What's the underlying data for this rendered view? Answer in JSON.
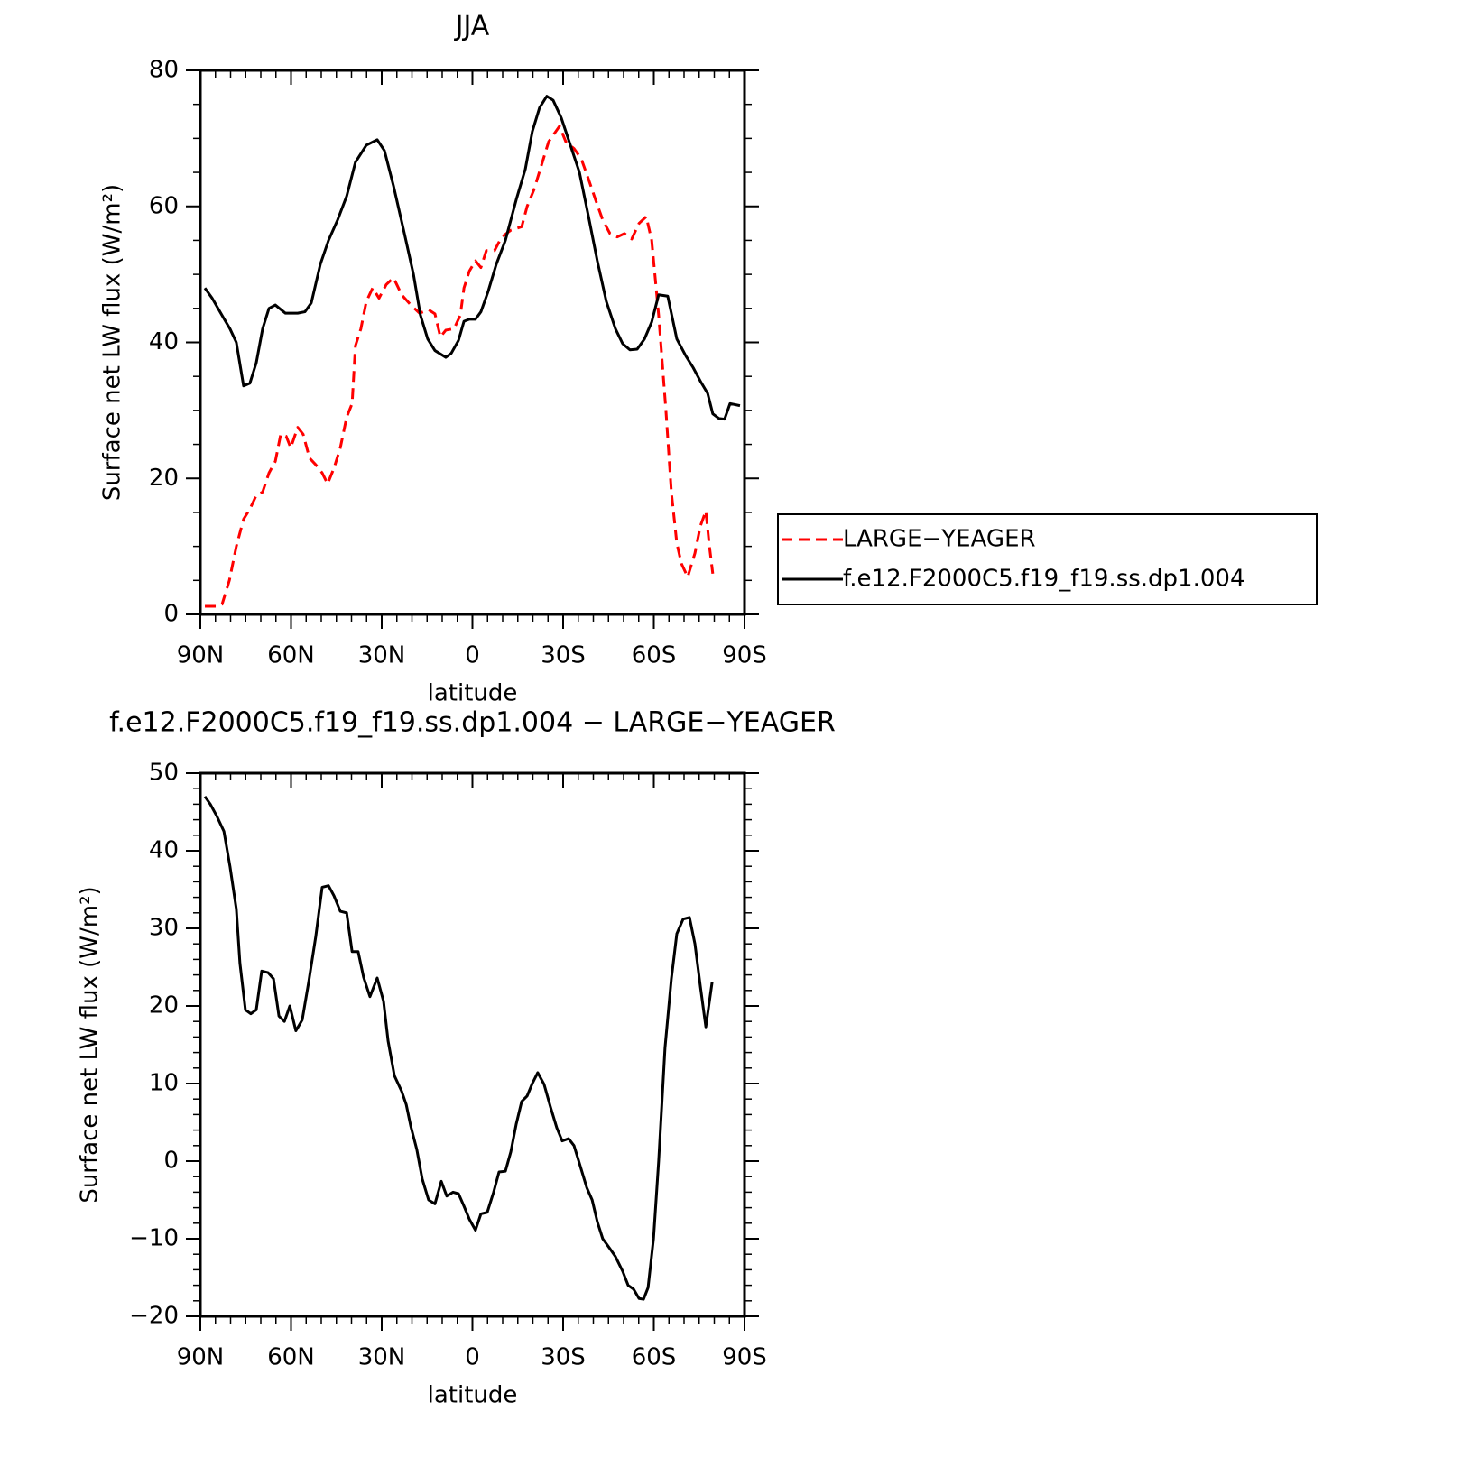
{
  "chart_data": [
    {
      "type": "line",
      "title": "JJA",
      "xlabel": "latitude",
      "ylabel": "Surface net LW flux (W/m²)",
      "xlim": [
        90,
        -90
      ],
      "xticks": [
        {
          "value": 90,
          "label": "90N"
        },
        {
          "value": 60,
          "label": "60N"
        },
        {
          "value": 30,
          "label": "30N"
        },
        0,
        {
          "value": -30,
          "label": "30S"
        },
        {
          "value": -60,
          "label": "60S"
        },
        {
          "value": -90,
          "label": "90S"
        }
      ],
      "ylim": [
        0,
        80
      ],
      "yticks": [
        0,
        20,
        40,
        60,
        80
      ],
      "legend": "right",
      "series": [
        {
          "name": "LARGE−YEAGER",
          "color": "#ff0000",
          "dash": "dashed",
          "x": [
            88.5,
            84.6,
            82.8,
            80.4,
            78.1,
            75.7,
            73.6,
            71.5,
            69.4,
            67.3,
            65.2,
            63.4,
            61.6,
            60.1,
            57.8,
            56.0,
            53.9,
            51.8,
            49.7,
            47.9,
            45.8,
            43.7,
            41.6,
            39.8,
            38.7,
            36.9,
            35.1,
            33.0,
            30.9,
            28.5,
            26.1,
            23.4,
            20.4,
            17.5,
            14.5,
            12.4,
            10.6,
            8.8,
            6.1,
            4.0,
            2.8,
            1.0,
            -1.0,
            -2.8,
            -4.6,
            -7.3,
            -9.7,
            -12.7,
            -16.3,
            -18.1,
            -20.4,
            -22.8,
            -25.2,
            -28.8,
            -30.9,
            -33.6,
            -36.0,
            -38.4,
            -40.7,
            -43.1,
            -45.5,
            -47.9,
            -50.3,
            -52.7,
            -55.1,
            -57.5,
            -59.3,
            -61.6,
            -64.0,
            -65.8,
            -67.6,
            -69.1,
            -71.2,
            -73.6,
            -75.4,
            -77.2,
            -78.4,
            -79.5
          ],
          "values": [
            1.2,
            1.2,
            1.5,
            5,
            10,
            14,
            15.5,
            17.5,
            18,
            20.8,
            22.5,
            26.5,
            26.2,
            24.5,
            27.5,
            26.5,
            23,
            22,
            20.8,
            19.2,
            21.5,
            24.5,
            29,
            31,
            39.5,
            42,
            46,
            48,
            46.5,
            48.5,
            49.5,
            47,
            45.5,
            44.3,
            44.8,
            44.2,
            40.8,
            41.8,
            42,
            44,
            48,
            50.5,
            52,
            51,
            53.5,
            53.5,
            55.5,
            56.5,
            57,
            60,
            62.5,
            66,
            69.5,
            71.8,
            69.5,
            68.5,
            67,
            64,
            61,
            58,
            56,
            55.5,
            56,
            55.2,
            57.5,
            58.5,
            55,
            44,
            30,
            18,
            10.5,
            7.5,
            5.5,
            9,
            13,
            15.2,
            10,
            6
          ]
        },
        {
          "name": "f.e12.F2000C5.f19_f19.ss.dp1.004",
          "color": "#000000",
          "dash": "solid",
          "x": [
            88.5,
            86.1,
            82.2,
            80.2,
            78.1,
            75.7,
            73.6,
            71.5,
            69.4,
            67.3,
            65.2,
            61.9,
            57.8,
            55.4,
            53.3,
            50.3,
            47.6,
            44.6,
            41.6,
            38.7,
            35.1,
            31.5,
            29.1,
            26.1,
            22.5,
            19.5,
            17.2,
            14.8,
            12.4,
            8.8,
            7.0,
            4.6,
            2.8,
            1.0,
            -1.0,
            -2.8,
            -5.2,
            -7.9,
            -10.9,
            -14.5,
            -17.5,
            -19.8,
            -22.2,
            -24.6,
            -26.7,
            -29.4,
            -32.4,
            -35.4,
            -38.4,
            -41.3,
            -44.3,
            -47.3,
            -49.7,
            -52.1,
            -54.5,
            -56.9,
            -59.3,
            -61.6,
            -64.6,
            -67.6,
            -70.6,
            -73.0,
            -75.4,
            -77.8,
            -79.5,
            -81.6,
            -83.4,
            -85.2,
            -88.5
          ],
          "values": [
            48,
            46.5,
            43.5,
            42,
            40,
            33.6,
            34,
            37,
            42,
            45,
            45.5,
            44.3,
            44.3,
            44.5,
            45.8,
            51.5,
            55,
            58,
            61.5,
            66.5,
            69,
            69.8,
            68.2,
            63,
            56,
            50,
            44,
            40.5,
            38.8,
            37.8,
            38.4,
            40.3,
            43.1,
            43.4,
            43.4,
            44.5,
            47.5,
            51.5,
            55,
            61,
            65.5,
            71,
            74.5,
            76.2,
            75.6,
            73,
            69,
            65,
            58.5,
            52,
            46,
            42,
            39.8,
            38.9,
            39,
            40.5,
            43,
            47,
            46.8,
            40.5,
            38,
            36.3,
            34.3,
            32.5,
            29.5,
            28.8,
            28.7,
            31,
            30.7
          ]
        }
      ]
    },
    {
      "type": "line",
      "title": "f.e12.F2000C5.f19_f19.ss.dp1.004 − LARGE−YEAGER",
      "xlabel": "latitude",
      "ylabel": "Surface net LW flux (W/m²)",
      "xlim": [
        90,
        -90
      ],
      "xticks": [
        {
          "value": 90,
          "label": "90N"
        },
        {
          "value": 60,
          "label": "60N"
        },
        {
          "value": 30,
          "label": "30N"
        },
        0,
        {
          "value": -30,
          "label": "30S"
        },
        {
          "value": -60,
          "label": "60S"
        },
        {
          "value": -90,
          "label": "90S"
        }
      ],
      "ylim": [
        -20,
        50
      ],
      "yticks": [
        {
          "value": -20,
          "label": "−20"
        },
        {
          "value": -10,
          "label": "−10"
        },
        0,
        10,
        20,
        30,
        40,
        50
      ],
      "series": [
        {
          "color": "#000000",
          "dash": "solid",
          "x": [
            88.5,
            86.7,
            84.6,
            82.2,
            80.2,
            78.1,
            76.9,
            75.1,
            73.3,
            71.5,
            69.7,
            67.6,
            65.8,
            64.0,
            62.2,
            60.4,
            58.4,
            56.3,
            54.2,
            51.8,
            49.7,
            47.6,
            45.8,
            43.7,
            41.6,
            39.8,
            37.8,
            36.0,
            33.9,
            31.5,
            29.4,
            27.9,
            25.8,
            23.4,
            21.9,
            20.4,
            18.4,
            16.6,
            14.5,
            12.4,
            10.3,
            8.5,
            6.4,
            4.6,
            2.8,
            1.0,
            -1.0,
            -2.8,
            -4.9,
            -7.0,
            -8.8,
            -10.9,
            -12.7,
            -14.5,
            -16.3,
            -18.1,
            -19.8,
            -21.6,
            -23.7,
            -25.8,
            -27.9,
            -29.7,
            -31.8,
            -33.6,
            -35.4,
            -37.8,
            -39.6,
            -41.3,
            -43.1,
            -45.5,
            -47.3,
            -49.7,
            -51.5,
            -53.3,
            -55.1,
            -56.6,
            -58.1,
            -59.9,
            -61.6,
            -63.7,
            -65.8,
            -67.6,
            -69.7,
            -71.8,
            -73.6,
            -75.4,
            -77.2,
            -79.3
          ],
          "values": [
            47,
            46,
            44.5,
            42.5,
            38,
            32.5,
            25.5,
            19.5,
            19,
            19.5,
            24.5,
            24.3,
            23.5,
            18.7,
            18,
            20,
            16.8,
            18.2,
            23,
            29,
            35.3,
            35.5,
            34.2,
            32.2,
            32,
            27,
            27,
            23.7,
            21.2,
            23.6,
            20.6,
            15.5,
            11,
            9,
            7.3,
            4.5,
            1.5,
            -2.3,
            -5,
            -5.5,
            -2.6,
            -4.5,
            -4,
            -4.2,
            -5.8,
            -7.5,
            -8.9,
            -6.8,
            -6.6,
            -4,
            -1.4,
            -1.3,
            1.2,
            4.8,
            7.7,
            8.4,
            10,
            11.4,
            9.9,
            7,
            4.3,
            2.6,
            2.9,
            2,
            -0.3,
            -3.4,
            -5,
            -7.8,
            -10,
            -11.3,
            -12.3,
            -14.2,
            -16,
            -16.5,
            -17.7,
            -17.8,
            -16.3,
            -10,
            0,
            14.6,
            23.5,
            29.3,
            31.2,
            31.4,
            28,
            22.5,
            17.3,
            23.1
          ]
        }
      ]
    }
  ]
}
